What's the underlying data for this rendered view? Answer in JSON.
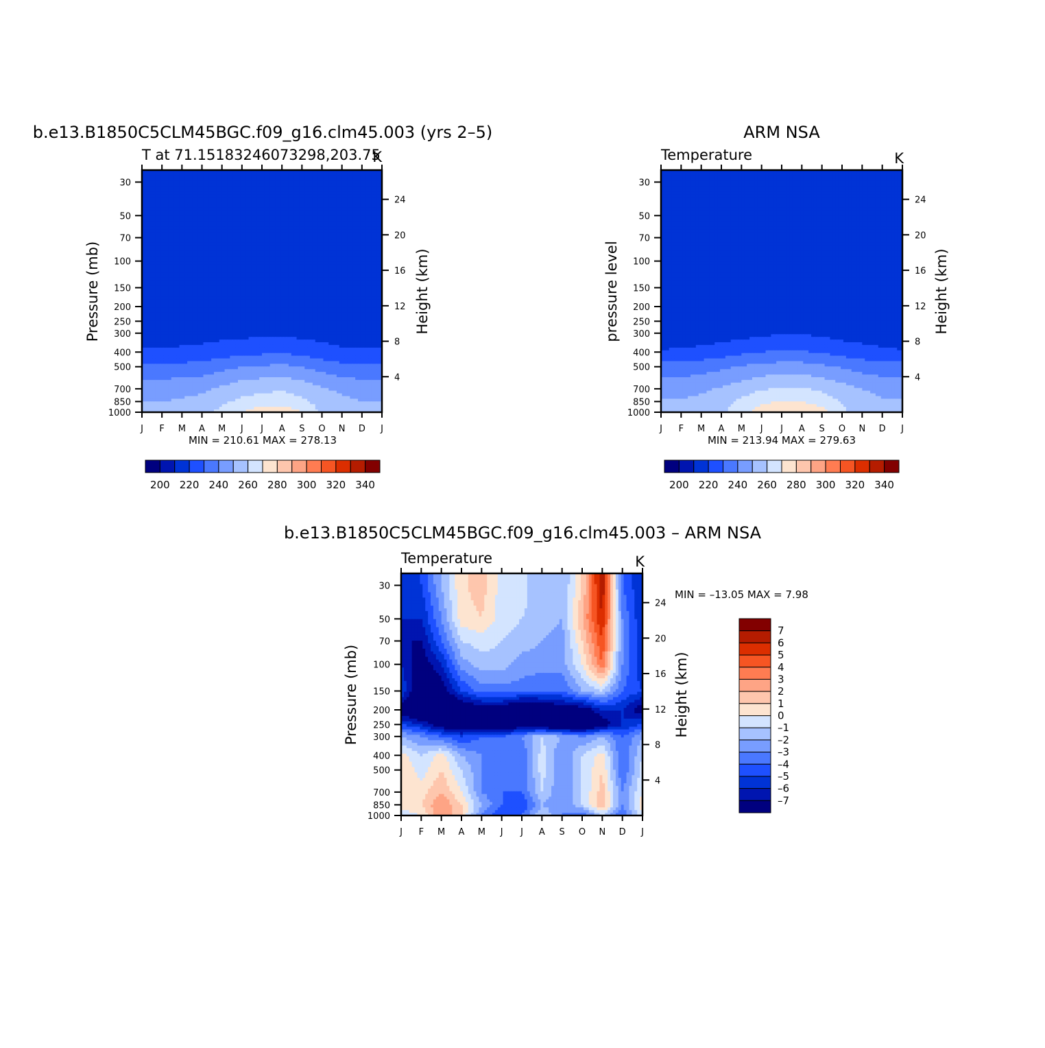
{
  "colors": {
    "abs_levels": [
      "#00007f",
      "#0015b0",
      "#0033d6",
      "#1e50ff",
      "#4a78ff",
      "#789dff",
      "#a6c2ff",
      "#d3e4ff",
      "#fde4d0",
      "#fec6ad",
      "#fea485",
      "#ff7c52",
      "#f65523",
      "#dc2e00",
      "#b51c00",
      "#820000"
    ],
    "diff_levels": [
      "#00007f",
      "#0015b0",
      "#0033d6",
      "#1e50ff",
      "#4a78ff",
      "#789dff",
      "#a6c2ff",
      "#d3e4ff",
      "#fde4d0",
      "#fec6ad",
      "#fea485",
      "#ff7c52",
      "#f65523",
      "#dc2e00",
      "#b51c00",
      "#820000"
    ]
  },
  "common": {
    "months": [
      "J",
      "F",
      "M",
      "A",
      "M",
      "J",
      "J",
      "A",
      "S",
      "O",
      "N",
      "D",
      "J"
    ],
    "pressure_ticks": [
      "30",
      "50",
      "70",
      "100",
      "150",
      "200",
      "250",
      "300",
      "400",
      "500",
      "700",
      "850",
      "1000"
    ],
    "height_ticks": [
      "4",
      "8",
      "12",
      "16",
      "20",
      "24"
    ],
    "height_label": "Height (km)",
    "units": "K"
  },
  "panels": {
    "model": {
      "title": "b.e13.B1850C5CLM45BGC.f09_g16.clm45.003 (yrs 2–5)",
      "subtitle": "T at 71.15183246073298,203.75",
      "units": "K",
      "ylabel": "Pressure (mb)",
      "stats": "MIN = 210.61  MAX = 278.13"
    },
    "obs": {
      "title": "ARM NSA",
      "subtitle": "Temperature",
      "units": "K",
      "ylabel": "pressure level",
      "stats": "MIN = 213.94  MAX = 279.63"
    },
    "diff": {
      "title": "b.e13.B1850C5CLM45BGC.f09_g16.clm45.003 – ARM NSA",
      "subtitle": "Temperature",
      "units": "K",
      "ylabel": "Pressure (mb)",
      "stats": "MIN = –13.05  MAX =    7.98"
    }
  },
  "colorbars": {
    "abs_labels": [
      "200",
      "220",
      "240",
      "260",
      "280",
      "300",
      "320",
      "340"
    ],
    "diff_labels": [
      "7",
      "6",
      "5",
      "4",
      "3",
      "2",
      "1",
      "0",
      "–1",
      "–2",
      "–3",
      "–4",
      "–5",
      "–6",
      "–7"
    ]
  },
  "chart_data": [
    {
      "type": "heatmap",
      "title": "b.e13.B1850C5CLM45BGC.f09_g16.clm45.003 (yrs 2–5)",
      "subtitle": "T at 71.15183246073298,203.75",
      "units": "K",
      "x": [
        "J",
        "F",
        "M",
        "A",
        "M",
        "J",
        "J",
        "A",
        "S",
        "O",
        "N",
        "D",
        "J"
      ],
      "ylabel": "Pressure (mb)",
      "y_pressure": [
        30,
        50,
        70,
        100,
        150,
        200,
        250,
        300,
        400,
        500,
        700,
        850,
        1000
      ],
      "y_log_scale": true,
      "y2label": "Height (km)",
      "levels": [
        200,
        205,
        210,
        215,
        220,
        225,
        230,
        235,
        240,
        245,
        250,
        255,
        260,
        265,
        270,
        275,
        280,
        285,
        290,
        295,
        300,
        305,
        310,
        315,
        320,
        325,
        330,
        335,
        340,
        345
      ],
      "min": 210.61,
      "max": 278.13,
      "values_approx": [
        [
          210,
          213,
          215,
          215,
          215,
          215,
          216,
          216,
          215,
          214,
          213,
          211,
          210
        ],
        [
          211,
          213,
          215,
          215,
          215,
          215,
          216,
          216,
          215,
          214,
          212,
          211,
          211
        ],
        [
          211,
          212,
          214,
          215,
          215,
          215,
          216,
          216,
          215,
          214,
          213,
          211,
          211
        ],
        [
          211,
          212,
          213,
          215,
          215,
          215,
          215,
          215,
          215,
          214,
          212,
          211,
          211
        ],
        [
          211,
          211,
          212,
          213,
          215,
          215,
          215,
          215,
          215,
          213,
          212,
          211,
          211
        ],
        [
          211,
          211,
          211,
          212,
          212,
          212,
          212,
          213,
          212,
          212,
          211,
          211,
          211
        ],
        [
          212,
          212,
          212,
          212,
          212,
          212,
          212,
          212,
          212,
          212,
          212,
          212,
          212
        ],
        [
          215,
          215,
          216,
          216,
          217,
          217,
          218,
          218,
          217,
          216,
          215,
          215,
          215
        ],
        [
          221,
          221,
          222,
          223,
          225,
          227,
          228,
          229,
          227,
          224,
          222,
          221,
          221
        ],
        [
          232,
          232,
          233,
          234,
          237,
          240,
          241,
          242,
          240,
          236,
          233,
          232,
          232
        ],
        [
          246,
          246,
          247,
          248,
          252,
          256,
          258,
          259,
          256,
          251,
          248,
          246,
          246
        ],
        [
          250,
          250,
          251,
          253,
          258,
          262,
          264,
          265,
          262,
          256,
          252,
          250,
          250
        ],
        [
          252,
          252,
          253,
          256,
          263,
          270,
          277,
          277,
          270,
          258,
          253,
          252,
          252
        ]
      ]
    },
    {
      "type": "heatmap",
      "title": "ARM NSA",
      "subtitle": "Temperature",
      "units": "K",
      "x": [
        "J",
        "F",
        "M",
        "A",
        "M",
        "J",
        "J",
        "A",
        "S",
        "O",
        "N",
        "D",
        "J"
      ],
      "ylabel": "pressure level",
      "y_pressure": [
        30,
        50,
        70,
        100,
        150,
        200,
        250,
        300,
        400,
        500,
        700,
        850,
        1000
      ],
      "y_log_scale": true,
      "y2label": "Height (km)",
      "levels": [
        200,
        205,
        210,
        215,
        220,
        225,
        230,
        235,
        240,
        245,
        250,
        255,
        260,
        265,
        270,
        275,
        280,
        285,
        290,
        295,
        300,
        305,
        310,
        315,
        320,
        325,
        330,
        335,
        340,
        345
      ],
      "min": 213.94,
      "max": 279.63,
      "values_approx": [
        [
          216,
          216,
          216,
          217,
          217,
          218,
          218,
          218,
          218,
          217,
          216,
          214,
          213
        ],
        [
          216,
          216,
          216,
          217,
          217,
          218,
          218,
          218,
          218,
          217,
          215,
          214,
          214
        ],
        [
          216,
          216,
          216,
          217,
          217,
          218,
          218,
          218,
          218,
          217,
          215,
          214,
          214
        ],
        [
          216,
          216,
          216,
          217,
          217,
          218,
          218,
          218,
          218,
          217,
          215,
          214,
          214
        ],
        [
          216,
          216,
          216,
          216,
          217,
          217,
          217,
          217,
          217,
          216,
          215,
          214,
          214
        ],
        [
          215,
          215,
          215,
          215,
          216,
          216,
          216,
          216,
          216,
          216,
          215,
          214,
          214
        ],
        [
          213,
          213,
          213,
          214,
          215,
          215,
          215,
          215,
          215,
          215,
          215,
          214,
          213
        ],
        [
          213,
          213,
          214,
          215,
          216,
          218,
          219,
          219,
          218,
          216,
          215,
          214,
          213
        ],
        [
          221,
          222,
          223,
          225,
          228,
          230,
          231,
          231,
          229,
          226,
          224,
          222,
          221
        ],
        [
          234,
          234,
          236,
          238,
          241,
          243,
          244,
          244,
          242,
          239,
          236,
          234,
          234
        ],
        [
          246,
          246,
          248,
          251,
          255,
          259,
          261,
          261,
          258,
          254,
          250,
          247,
          246
        ],
        [
          251,
          251,
          253,
          256,
          262,
          268,
          270,
          270,
          266,
          259,
          254,
          251,
          251
        ],
        [
          252,
          252,
          254,
          258,
          266,
          275,
          279,
          279,
          274,
          262,
          255,
          252,
          252
        ]
      ]
    },
    {
      "type": "heatmap",
      "title": "b.e13.B1850C5CLM45BGC.f09_g16.clm45.003 – ARM NSA",
      "subtitle": "Temperature",
      "units": "K",
      "x": [
        "J",
        "F",
        "M",
        "A",
        "M",
        "J",
        "J",
        "A",
        "S",
        "O",
        "N",
        "D",
        "J"
      ],
      "ylabel": "Pressure (mb)",
      "y_pressure": [
        30,
        50,
        70,
        100,
        150,
        200,
        250,
        300,
        400,
        500,
        700,
        850,
        1000
      ],
      "y_log_scale": true,
      "y2label": "Height (km)",
      "levels": [
        -7,
        -6,
        -5,
        -4,
        -3,
        -2,
        -1,
        0,
        1,
        2,
        3,
        4,
        5,
        6,
        7
      ],
      "min": -13.05,
      "max": 7.98,
      "values_approx": [
        [
          -6,
          -5,
          -2,
          0.8,
          1.5,
          -0.5,
          -0.5,
          -2,
          -2,
          1,
          7,
          -4,
          -6
        ],
        [
          -6,
          -6,
          -3,
          0.5,
          1,
          -0.5,
          -1,
          -1.5,
          -2,
          2,
          6,
          -3,
          -6
        ],
        [
          -7,
          -7,
          -4,
          -1,
          -0.5,
          -1,
          -1.5,
          -2,
          -2.5,
          1,
          5,
          -3,
          -6
        ],
        [
          -6,
          -8,
          -6,
          -2.5,
          -1.5,
          -1.5,
          -2.5,
          -2.5,
          -2.5,
          0,
          4,
          -3,
          -6
        ],
        [
          -5,
          -9,
          -8,
          -5,
          -3.5,
          -3.5,
          -3.5,
          -4,
          -4,
          -2,
          -1,
          -4,
          -5
        ],
        [
          -8,
          -10,
          -10,
          -9,
          -8,
          -8,
          -10,
          -9,
          -8,
          -8,
          -6,
          -6,
          -8
        ],
        [
          -5,
          -6,
          -8,
          -9,
          -9,
          -10,
          -8,
          -9,
          -10,
          -10,
          -8,
          -6,
          -5
        ],
        [
          -2,
          -3,
          -4,
          -5,
          -4,
          -4,
          -3,
          -1,
          -2,
          -3,
          -2,
          -4,
          -2
        ],
        [
          0.5,
          -1,
          0.5,
          -2,
          -3,
          -3,
          -4,
          -0.5,
          -3,
          -1,
          0.5,
          -4,
          -1
        ],
        [
          1,
          -0.5,
          1,
          -1,
          -3,
          -4,
          -4,
          -0.5,
          -3,
          -1,
          1,
          -4,
          -0.5
        ],
        [
          1,
          0.5,
          2,
          0,
          -3,
          -4,
          -4,
          -1,
          -3,
          -1,
          1.5,
          -3,
          0
        ],
        [
          1,
          1,
          3,
          1,
          -2,
          -4,
          -5,
          -2,
          -3,
          -1,
          2,
          -3,
          0.5
        ],
        [
          -1,
          0,
          3,
          1,
          -3,
          -5,
          -4,
          -1,
          -3,
          -4,
          -1,
          -4,
          0
        ]
      ]
    }
  ]
}
